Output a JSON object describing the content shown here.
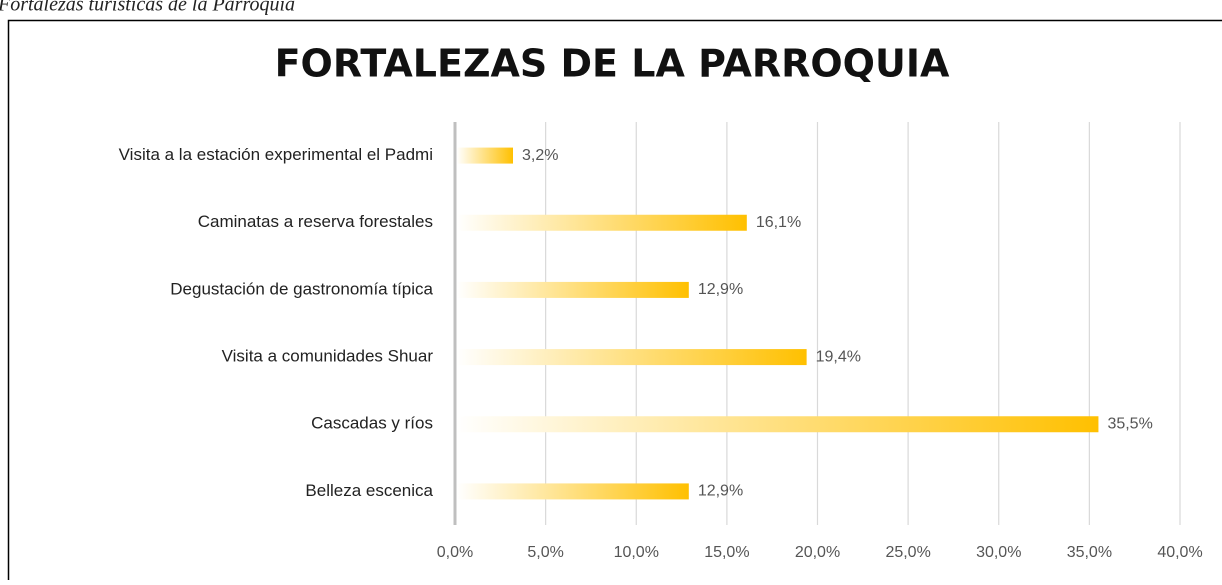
{
  "caption": "Fortalezas turísticas de la Parroquia",
  "chart_data": {
    "type": "barh",
    "title": "FORTALEZAS DE LA PARROQUIA",
    "categories": [
      "Visita a la estación experimental el Padmi",
      "Caminatas a reserva forestales",
      "Degustación de gastronomía típica",
      "Visita a comunidades Shuar",
      "Cascadas y ríos",
      "Belleza escenica"
    ],
    "values": [
      3.2,
      16.1,
      12.9,
      19.4,
      35.5,
      12.9
    ],
    "value_labels": [
      "3,2%",
      "16,1%",
      "12,9%",
      "19,4%",
      "35,5%",
      "12,9%"
    ],
    "color": "#ffc000",
    "xlim": [
      0,
      40
    ],
    "xticks": [
      {
        "value": 0,
        "label": "0,0%"
      },
      {
        "value": 5,
        "label": "5,0%"
      },
      {
        "value": 10,
        "label": "10,0%"
      },
      {
        "value": 15,
        "label": "15,0%"
      },
      {
        "value": 20,
        "label": "20,0%"
      },
      {
        "value": 25,
        "label": "25,0%"
      },
      {
        "value": 30,
        "label": "30,0%"
      },
      {
        "value": 35,
        "label": "35,0%"
      },
      {
        "value": 40,
        "label": "40,0%"
      }
    ],
    "grid": true
  }
}
